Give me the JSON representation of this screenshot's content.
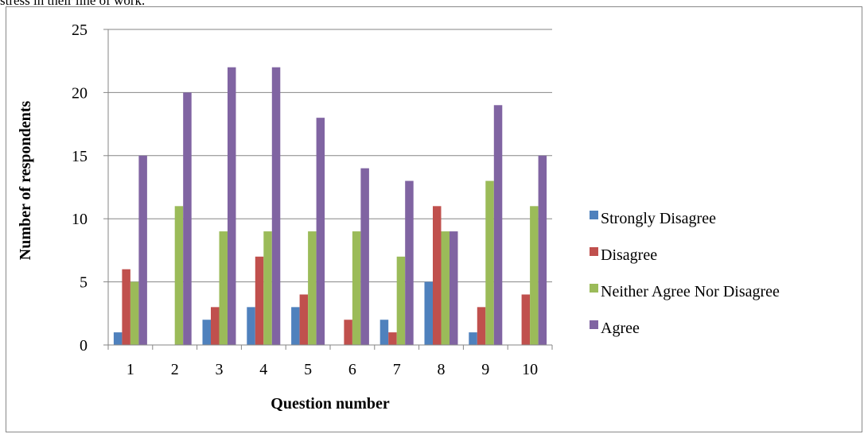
{
  "caption": "stress in their line of work.",
  "chart_data": {
    "type": "bar",
    "title": "",
    "xlabel": "Question number",
    "ylabel": "Number of respondents",
    "categories": [
      "1",
      "2",
      "3",
      "4",
      "5",
      "6",
      "7",
      "8",
      "9",
      "10"
    ],
    "yticks": [
      "0",
      "5",
      "10",
      "15",
      "20",
      "25"
    ],
    "ylim": [
      0,
      25
    ],
    "grid": "horizontal",
    "legend_position": "right",
    "series": [
      {
        "name": "Strongly Disagree",
        "color": "#4f81bd",
        "values": [
          1,
          0,
          2,
          3,
          3,
          0,
          2,
          5,
          1,
          0
        ]
      },
      {
        "name": "Disagree",
        "color": "#c0504d",
        "values": [
          6,
          0,
          3,
          7,
          4,
          2,
          1,
          11,
          3,
          4
        ]
      },
      {
        "name": "Neither Agree Nor Disagree",
        "color": "#9bbb59",
        "values": [
          5,
          11,
          9,
          9,
          9,
          9,
          7,
          9,
          13,
          11
        ]
      },
      {
        "name": "Agree",
        "color": "#8064a2",
        "values": [
          15,
          20,
          22,
          22,
          18,
          14,
          13,
          9,
          19,
          15
        ]
      }
    ]
  }
}
